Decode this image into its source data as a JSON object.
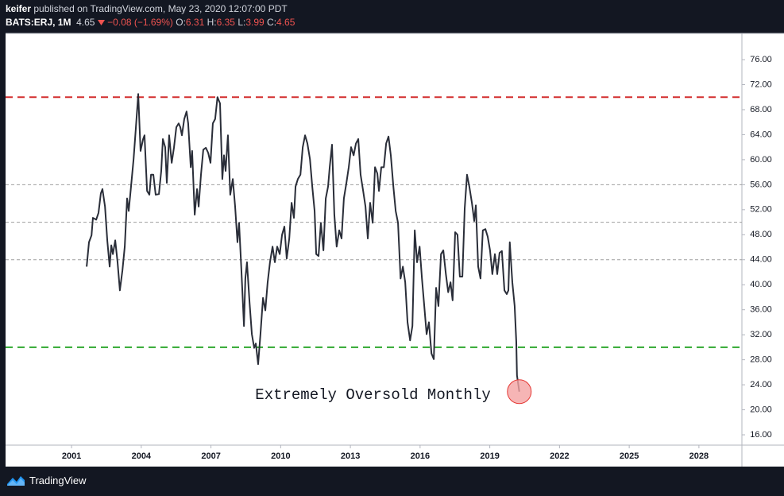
{
  "header": {
    "author": "keifer",
    "published": "published on TradingView.com, May 23, 2020 12:07:00 PDT",
    "symbol": "BATS:ERJ, 1M",
    "last": "4.65",
    "change": "−0.08 (−1.69%)",
    "ohlc": [
      {
        "label": "O:",
        "value": "6.31"
      },
      {
        "label": "H:",
        "value": "6.35"
      },
      {
        "label": "L:",
        "value": "3.99"
      },
      {
        "label": "C:",
        "value": "4.65"
      }
    ]
  },
  "chart_data": {
    "type": "line",
    "x": [
      2001.65,
      2001.75,
      2001.86,
      2001.92,
      2002.06,
      2002.16,
      2002.26,
      2002.33,
      2002.44,
      2002.54,
      2002.64,
      2002.71,
      2002.78,
      2002.88,
      2002.98,
      2003.08,
      2003.19,
      2003.29,
      2003.39,
      2003.46,
      2003.56,
      2003.67,
      2003.77,
      2003.87,
      2003.97,
      2004.08,
      2004.14,
      2004.25,
      2004.35,
      2004.42,
      2004.52,
      2004.62,
      2004.76,
      2004.86,
      2004.93,
      2005.03,
      2005.1,
      2005.2,
      2005.31,
      2005.41,
      2005.51,
      2005.61,
      2005.68,
      2005.75,
      2005.85,
      2005.95,
      2006.02,
      2006.13,
      2006.19,
      2006.3,
      2006.4,
      2006.47,
      2006.57,
      2006.67,
      2006.78,
      2006.88,
      2006.98,
      2007.08,
      2007.18,
      2007.28,
      2007.39,
      2007.49,
      2007.56,
      2007.63,
      2007.73,
      2007.83,
      2007.94,
      2008.04,
      2008.14,
      2008.21,
      2008.31,
      2008.42,
      2008.48,
      2008.55,
      2008.66,
      2008.76,
      2008.86,
      2008.93,
      2009.03,
      2009.13,
      2009.24,
      2009.34,
      2009.44,
      2009.54,
      2009.65,
      2009.75,
      2009.85,
      2009.96,
      2010.06,
      2010.16,
      2010.26,
      2010.37,
      2010.47,
      2010.57,
      2010.64,
      2010.74,
      2010.85,
      2010.95,
      2011.05,
      2011.15,
      2011.26,
      2011.36,
      2011.46,
      2011.53,
      2011.63,
      2011.73,
      2011.84,
      2011.94,
      2012.04,
      2012.11,
      2012.21,
      2012.31,
      2012.41,
      2012.52,
      2012.62,
      2012.72,
      2012.83,
      2012.93,
      2013.03,
      2013.14,
      2013.24,
      2013.34,
      2013.44,
      2013.55,
      2013.65,
      2013.75,
      2013.85,
      2013.96,
      2014.06,
      2014.16,
      2014.23,
      2014.33,
      2014.44,
      2014.54,
      2014.64,
      2014.74,
      2014.85,
      2014.95,
      2015.05,
      2015.16,
      2015.26,
      2015.36,
      2015.46,
      2015.57,
      2015.67,
      2015.77,
      2015.87,
      2015.98,
      2016.08,
      2016.18,
      2016.28,
      2016.38,
      2016.49,
      2016.59,
      2016.69,
      2016.79,
      2016.9,
      2017.0,
      2017.11,
      2017.21,
      2017.31,
      2017.4,
      2017.51,
      2017.61,
      2017.71,
      2017.82,
      2017.92,
      2018.02,
      2018.12,
      2018.23,
      2018.33,
      2018.4,
      2018.5,
      2018.6,
      2018.7,
      2018.81,
      2018.91,
      2019.01,
      2019.11,
      2019.22,
      2019.32,
      2019.42,
      2019.52,
      2019.63,
      2019.73,
      2019.8,
      2019.86,
      2019.97,
      2020.07,
      2020.14,
      2020.17,
      2020.27
    ],
    "series": [
      {
        "color": "#2a2e39",
        "values": [
          42.9,
          46.8,
          47.9,
          50.7,
          50.4,
          51.5,
          54.6,
          55.3,
          52.5,
          47.0,
          42.9,
          46.3,
          44.9,
          47.1,
          43.6,
          39.1,
          42.3,
          46.1,
          53.8,
          51.8,
          55.7,
          60.1,
          65.2,
          70.5,
          61.4,
          63.3,
          63.9,
          55.0,
          54.4,
          57.6,
          57.6,
          54.4,
          54.5,
          58.2,
          63.3,
          62.0,
          56.3,
          63.9,
          59.5,
          62.0,
          65.2,
          65.8,
          65.2,
          63.9,
          66.5,
          67.7,
          65.8,
          58.8,
          61.4,
          51.2,
          55.3,
          52.5,
          57.6,
          61.6,
          61.9,
          61.1,
          59.5,
          65.8,
          66.5,
          70.0,
          69.0,
          56.9,
          60.7,
          58.2,
          63.9,
          54.4,
          56.9,
          52.5,
          46.8,
          49.9,
          42.3,
          33.4,
          41.0,
          43.6,
          37.2,
          32.1,
          29.9,
          30.6,
          27.3,
          32.1,
          37.9,
          35.9,
          40.4,
          43.6,
          46.1,
          43.6,
          46.1,
          44.9,
          48.0,
          49.3,
          44.2,
          47.4,
          53.1,
          50.7,
          55.7,
          56.9,
          57.6,
          62.0,
          63.9,
          62.6,
          60.1,
          55.7,
          51.8,
          44.9,
          44.6,
          49.9,
          45.5,
          53.8,
          55.7,
          58.8,
          62.4,
          51.2,
          46.1,
          48.7,
          47.4,
          53.8,
          56.3,
          58.8,
          62.0,
          60.7,
          62.6,
          63.3,
          57.6,
          55.0,
          52.5,
          47.4,
          53.1,
          49.9,
          58.8,
          57.8,
          55.0,
          58.8,
          58.8,
          62.6,
          63.7,
          60.7,
          55.7,
          51.8,
          49.9,
          41.0,
          42.9,
          40.4,
          34.0,
          31.1,
          33.4,
          48.7,
          43.6,
          46.1,
          41.0,
          36.6,
          32.1,
          34.0,
          29.0,
          28.1,
          39.5,
          36.6,
          44.9,
          45.5,
          41.7,
          38.8,
          40.4,
          37.5,
          48.4,
          48.0,
          41.3,
          41.3,
          52.2,
          57.6,
          55.7,
          53.1,
          50.2,
          52.7,
          42.9,
          41.0,
          48.7,
          48.9,
          47.7,
          45.5,
          41.7,
          44.9,
          41.7,
          45.1,
          45.4,
          39.1,
          38.5,
          39.1,
          46.8,
          40.4,
          36.6,
          30.9,
          25.5,
          22.9
        ]
      }
    ],
    "xlim": [
      1998.16,
      2029.85
    ],
    "xticks": [
      2001,
      2004,
      2007,
      2010,
      2013,
      2016,
      2019,
      2022,
      2025,
      2028
    ],
    "ylim": [
      14.35,
      80.2
    ],
    "yticks": [
      {
        "value": 16,
        "label": "16.00"
      },
      {
        "value": 20,
        "label": "20.00"
      },
      {
        "value": 24,
        "label": "24.00"
      },
      {
        "value": 28,
        "label": "28.00"
      },
      {
        "value": 32,
        "label": "32.00"
      },
      {
        "value": 36,
        "label": "36.00"
      },
      {
        "value": 40,
        "label": "40.00"
      },
      {
        "value": 44,
        "label": "44.00"
      },
      {
        "value": 48,
        "label": "48.00"
      },
      {
        "value": 52,
        "label": "52.00"
      },
      {
        "value": 56,
        "label": "56.00"
      },
      {
        "value": 60,
        "label": "60.00"
      },
      {
        "value": 64,
        "label": "64.00"
      },
      {
        "value": 68,
        "label": "68.00"
      },
      {
        "value": 72,
        "label": "72.00"
      },
      {
        "value": 76,
        "label": "76.00"
      }
    ],
    "levels": [
      {
        "value": 70,
        "color": "#d32f2f"
      },
      {
        "value": 30,
        "color": "#2ea82e"
      }
    ],
    "guides": {
      "values": [
        56,
        50,
        44
      ],
      "color": "#9e9e9e"
    },
    "annotation": {
      "text": "Extremely Oversold Monthly",
      "x": 2020.27,
      "y": 22.9,
      "color": "#f4a3a3"
    }
  },
  "footer": {
    "brand": "TradingView"
  }
}
